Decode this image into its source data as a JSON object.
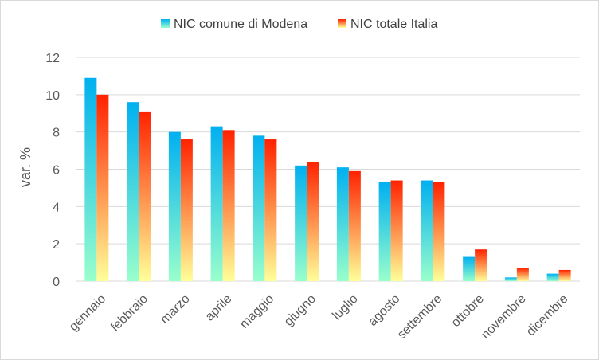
{
  "chart_data": {
    "type": "bar",
    "ylabel": "var. %",
    "ylim": [
      0,
      12
    ],
    "yticks": [
      0,
      2,
      4,
      6,
      8,
      10,
      12
    ],
    "grid": true,
    "legend_position": "top",
    "categories": [
      "gennaio",
      "febbraio",
      "marzo",
      "aprile",
      "maggio",
      "giugno",
      "luglio",
      "agosto",
      "settembre",
      "ottobre",
      "novembre",
      "dicembre"
    ],
    "series": [
      {
        "name": "NIC comune di Modena",
        "values": [
          10.9,
          9.6,
          8.0,
          8.3,
          7.8,
          6.2,
          6.1,
          5.3,
          5.4,
          1.3,
          0.2,
          0.4
        ],
        "gradient": [
          "#00b0f0",
          "#99ffcc"
        ]
      },
      {
        "name": "NIC totale Italia",
        "values": [
          10.0,
          9.1,
          7.6,
          8.1,
          7.6,
          6.4,
          5.9,
          5.4,
          5.3,
          1.7,
          0.7,
          0.6
        ],
        "gradient": [
          "#ff2200",
          "#ffff99"
        ]
      }
    ]
  }
}
